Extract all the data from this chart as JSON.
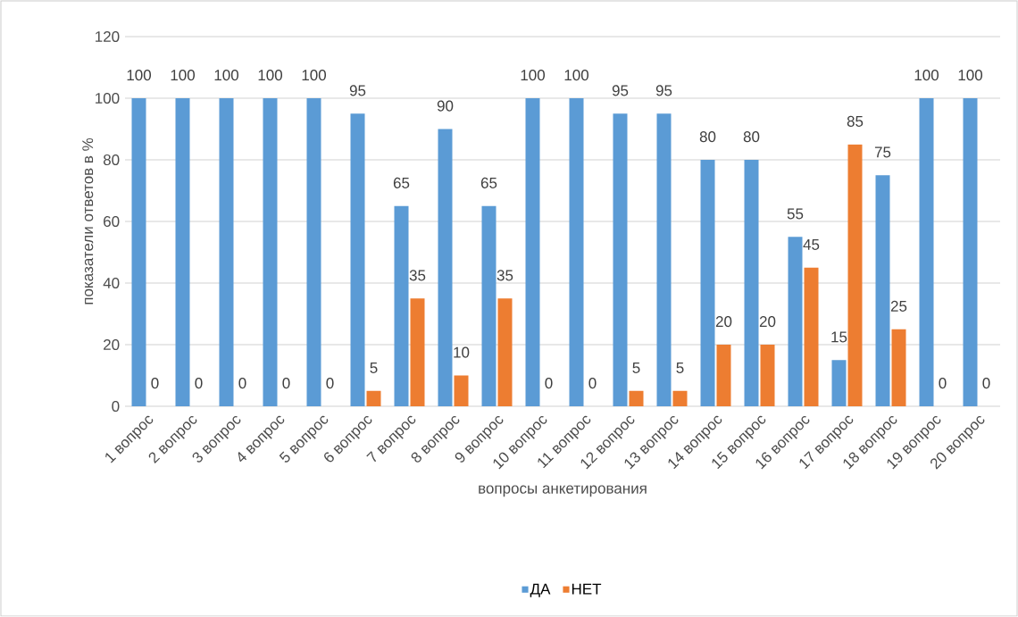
{
  "chart_data": {
    "type": "bar",
    "xlabel": "вопросы анкетирования",
    "ylabel": "показатели ответов в %",
    "categories": [
      "1 вопрос",
      "2 вопрос",
      "3 вопрос",
      "4 вопрос",
      "5 вопрос",
      "6 вопрос",
      "7 вопрос",
      "8 вопрос",
      "9 вопрос",
      "10 вопрос",
      "11 вопрос",
      "12 вопрос",
      "13 вопрос",
      "14 вопрос",
      "15 вопрос",
      "16  вопрос",
      "17 вопрос",
      "18 вопрос",
      "19 вопрос",
      "20 вопрос"
    ],
    "series": [
      {
        "name": "ДА",
        "color": "#5b9bd5",
        "values": [
          100,
          100,
          100,
          100,
          100,
          95,
          65,
          90,
          65,
          100,
          100,
          95,
          95,
          80,
          80,
          55,
          15,
          75,
          100,
          100
        ]
      },
      {
        "name": "НЕТ",
        "color": "#ed7d31",
        "values": [
          0,
          0,
          0,
          0,
          0,
          5,
          35,
          10,
          35,
          0,
          0,
          5,
          5,
          20,
          20,
          45,
          85,
          25,
          0,
          0
        ]
      }
    ],
    "ylim": [
      0,
      120
    ],
    "yticks": [
      0,
      20,
      40,
      60,
      80,
      100,
      120
    ],
    "grid": "y",
    "legend": "bottom",
    "data_labels": true
  }
}
